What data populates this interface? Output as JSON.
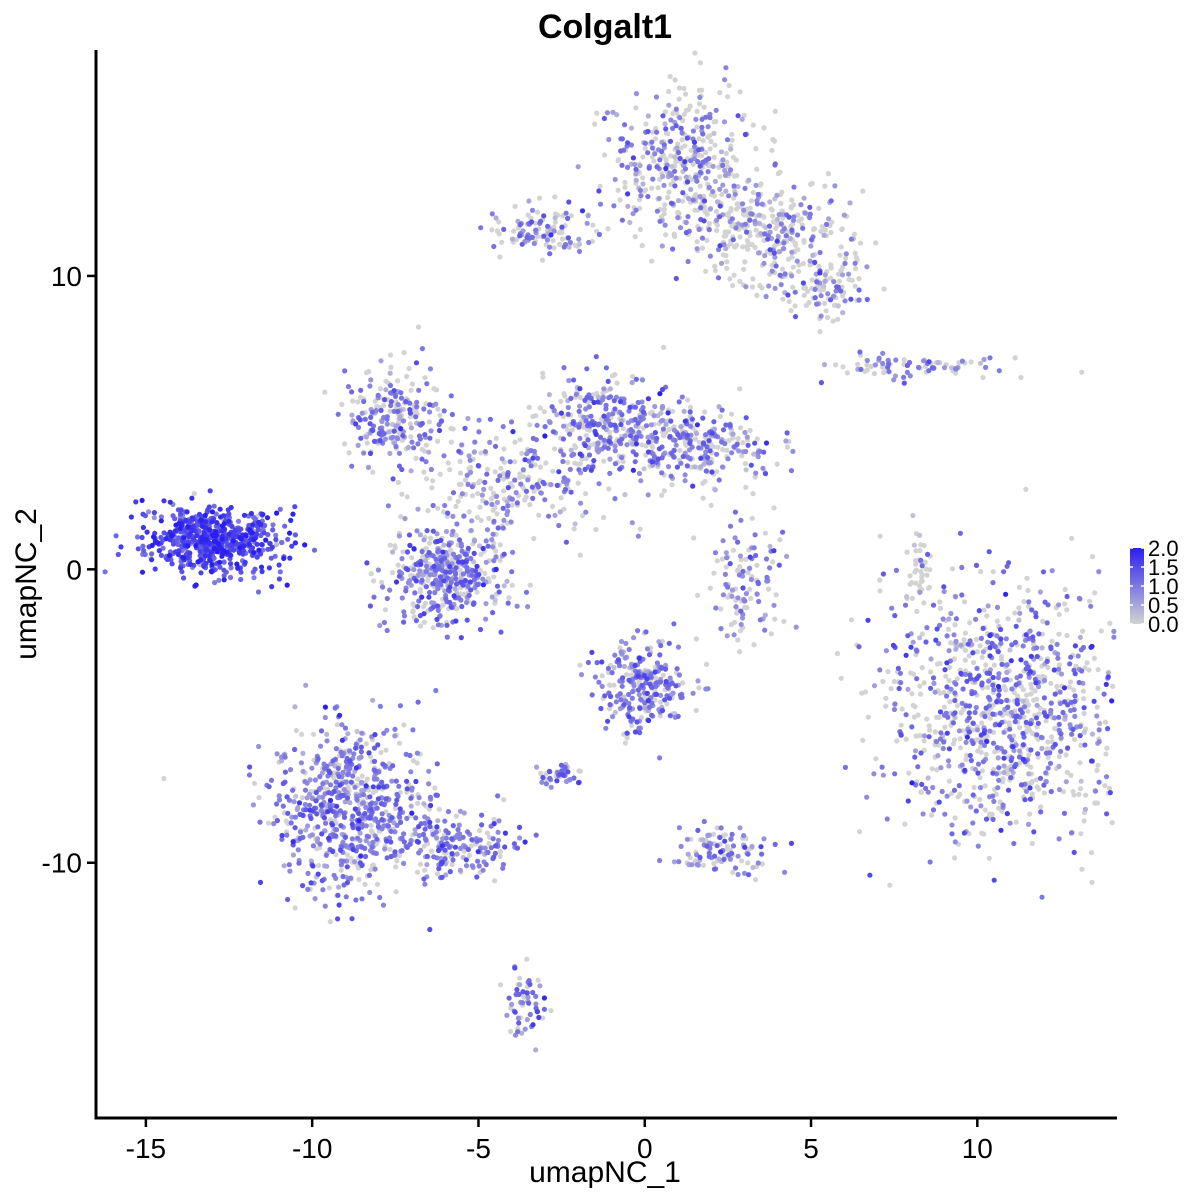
{
  "chart_data": {
    "type": "scatter",
    "title": "Colgalt1",
    "xlabel": "umapNC_1",
    "ylabel": "umapNC_2",
    "xlim": [
      -16.5,
      14.2
    ],
    "ylim": [
      -18.7,
      17.7
    ],
    "xticks": [
      -15,
      -10,
      -5,
      0,
      5,
      10
    ],
    "xtick_labels": [
      "-15",
      "-10",
      "-5",
      "0",
      "5",
      "10"
    ],
    "yticks": [
      -10,
      0,
      10
    ],
    "ytick_labels": [
      "-10",
      "0",
      "10"
    ],
    "grid": false,
    "legend_position": "right",
    "color_scale": {
      "low_color": "#d3d3d3",
      "high_color": "#2a1ff0",
      "min": 0.0,
      "max": 2.0,
      "ticks": [
        2.0,
        1.5,
        1.0,
        0.5,
        0.0
      ],
      "tick_labels": [
        "2.0",
        "1.5",
        "1.0",
        "0.5",
        "0.0"
      ]
    },
    "series": [
      {
        "values_mean": 1.45,
        "expr_fraction": 0.97,
        "center": [
          -13.0,
          1.0
        ],
        "spread": [
          1.0,
          0.6
        ],
        "count": 620
      },
      {
        "values_mean": 1.0,
        "expr_fraction": 0.7,
        "center": [
          -6.0,
          -0.2
        ],
        "spread": [
          0.9,
          0.8
        ],
        "count": 420
      },
      {
        "values_mean": 0.95,
        "expr_fraction": 0.65,
        "center": [
          -7.5,
          5.2
        ],
        "spread": [
          0.8,
          0.8
        ],
        "count": 230
      },
      {
        "values_mean": 0.95,
        "expr_fraction": 0.6,
        "center": [
          -1.2,
          5.0
        ],
        "spread": [
          0.9,
          0.8
        ],
        "count": 260
      },
      {
        "values_mean": 0.95,
        "expr_fraction": 0.6,
        "center": [
          1.5,
          4.2
        ],
        "spread": [
          1.2,
          0.7
        ],
        "count": 300
      },
      {
        "values_mean": 0.9,
        "expr_fraction": 0.55,
        "center": [
          -4.0,
          3.0
        ],
        "spread": [
          1.4,
          0.9
        ],
        "count": 260
      },
      {
        "values_mean": 0.85,
        "expr_fraction": 0.45,
        "center": [
          1.2,
          13.8
        ],
        "spread": [
          1.1,
          1.3
        ],
        "count": 420
      },
      {
        "values_mean": 0.8,
        "expr_fraction": 0.35,
        "center": [
          3.8,
          11.5
        ],
        "spread": [
          1.2,
          0.9
        ],
        "count": 320
      },
      {
        "values_mean": 0.9,
        "expr_fraction": 0.55,
        "center": [
          -3.0,
          11.6
        ],
        "spread": [
          0.9,
          0.4
        ],
        "count": 120
      },
      {
        "values_mean": 0.85,
        "expr_fraction": 0.4,
        "center": [
          5.2,
          9.5
        ],
        "spread": [
          0.6,
          0.5
        ],
        "count": 90
      },
      {
        "values_mean": 1.05,
        "expr_fraction": 0.55,
        "center": [
          10.8,
          -4.8
        ],
        "spread": [
          1.8,
          2.1
        ],
        "count": 1000
      },
      {
        "values_mean": 1.0,
        "expr_fraction": 0.75,
        "center": [
          -8.7,
          -8.2
        ],
        "spread": [
          1.2,
          1.4
        ],
        "count": 720
      },
      {
        "values_mean": 0.95,
        "expr_fraction": 0.7,
        "center": [
          -5.5,
          -9.5
        ],
        "spread": [
          0.9,
          0.5
        ],
        "count": 160
      },
      {
        "values_mean": 1.0,
        "expr_fraction": 0.7,
        "center": [
          0.0,
          -4.0
        ],
        "spread": [
          0.7,
          0.8
        ],
        "count": 260
      },
      {
        "values_mean": 0.9,
        "expr_fraction": 0.6,
        "center": [
          2.3,
          -9.6
        ],
        "spread": [
          0.7,
          0.35
        ],
        "count": 110
      },
      {
        "values_mean": 0.9,
        "expr_fraction": 0.55,
        "center": [
          3.0,
          -0.4
        ],
        "spread": [
          0.6,
          1.0
        ],
        "count": 120
      },
      {
        "values_mean": 0.9,
        "expr_fraction": 0.55,
        "center": [
          8.0,
          6.9
        ],
        "spread": [
          1.2,
          0.2
        ],
        "count": 80
      },
      {
        "values_mean": 1.0,
        "expr_fraction": 0.75,
        "center": [
          -3.6,
          -14.9
        ],
        "spread": [
          0.3,
          0.7
        ],
        "count": 60
      },
      {
        "values_mean": 1.0,
        "expr_fraction": 0.8,
        "center": [
          -2.6,
          -7.0
        ],
        "spread": [
          0.35,
          0.2
        ],
        "count": 40
      },
      {
        "values_mean": 0.3,
        "expr_fraction": 0.15,
        "center": [
          8.2,
          0.0
        ],
        "spread": [
          0.15,
          0.9
        ],
        "count": 40
      }
    ]
  }
}
